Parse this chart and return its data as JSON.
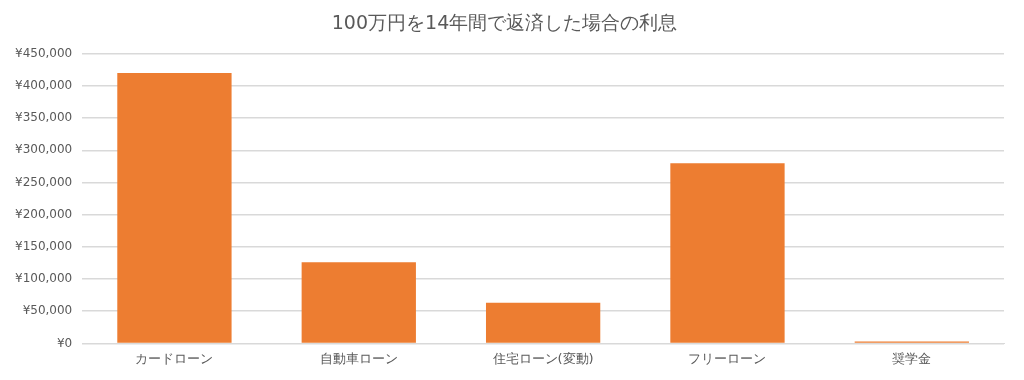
{
  "chart_data": {
    "type": "bar",
    "title": "100万円を14年間で返済した場合の利息",
    "categories": [
      "カードローン",
      "自動車ローン",
      "住宅ローン(変動)",
      "フリーローン",
      "奨学金"
    ],
    "values": [
      420000,
      126000,
      63000,
      280000,
      3000
    ],
    "color": "#ed7d31",
    "ylim": [
      0,
      450000
    ],
    "yticks": [
      {
        "value": 0,
        "label": "¥0"
      },
      {
        "value": 50000,
        "label": "¥50,000"
      },
      {
        "value": 100000,
        "label": "¥100,000"
      },
      {
        "value": 150000,
        "label": "¥150,000"
      },
      {
        "value": 200000,
        "label": "¥200,000"
      },
      {
        "value": 250000,
        "label": "¥250,000"
      },
      {
        "value": 300000,
        "label": "¥300,000"
      },
      {
        "value": 350000,
        "label": "¥350,000"
      },
      {
        "value": 400000,
        "label": "¥400,000"
      },
      {
        "value": 450000,
        "label": "¥450,000"
      }
    ],
    "grid": "y",
    "legend": false
  }
}
